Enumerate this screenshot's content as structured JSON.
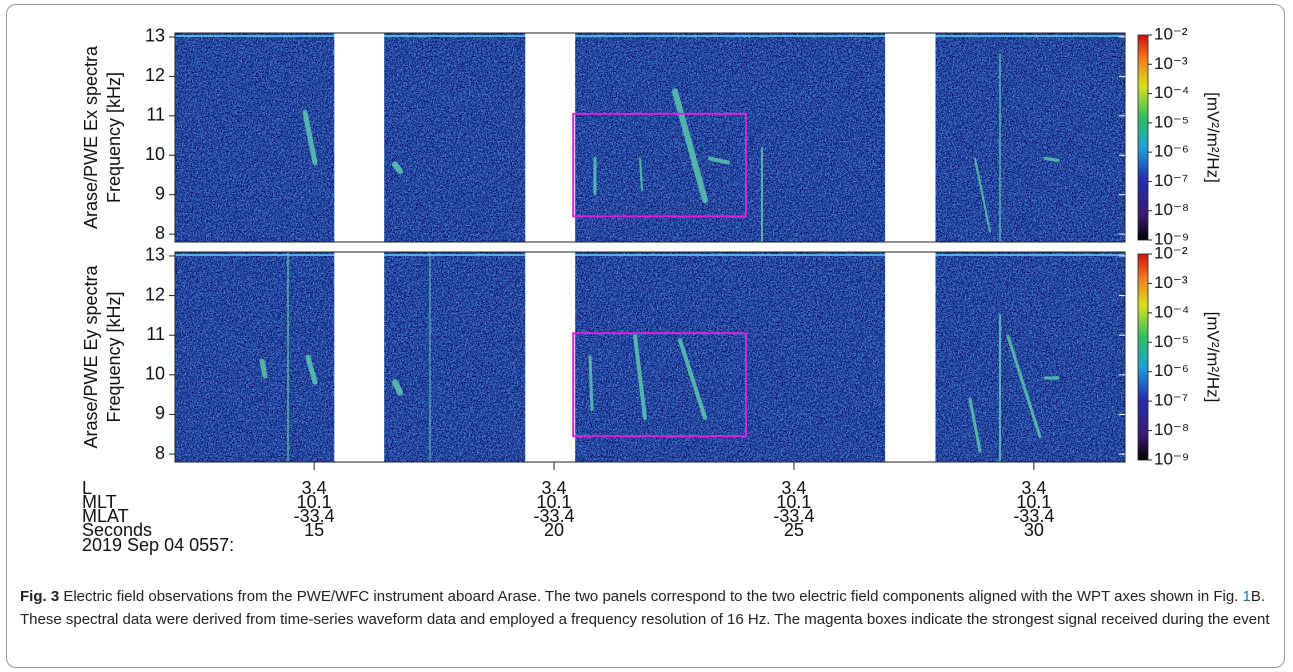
{
  "chart_data": [
    {
      "type": "spectrogram",
      "ylabel": [
        "Arase/PWE Ex spectra",
        "Frequency [kHz]"
      ],
      "ylim": [
        7.8,
        13.1
      ],
      "yticks": [
        8,
        9,
        10,
        11,
        12,
        13
      ],
      "xlim": [
        12.1,
        31.9
      ],
      "gaps": [
        [
          15.42,
          16.46
        ],
        [
          19.4,
          20.44
        ],
        [
          26.9,
          27.95
        ]
      ],
      "box": {
        "x": [
          20.4,
          24.0
        ],
        "y": [
          8.45,
          11.05
        ],
        "color": "#e020e0"
      },
      "colorbar": {
        "label": "[mV²/m²/Hz]",
        "clim": [
          1e-09,
          0.01
        ],
        "log": true,
        "ticks": [
          {
            "value": 0.01,
            "label": "10⁻²"
          },
          {
            "value": 0.001,
            "label": "10⁻³"
          },
          {
            "value": 0.0001,
            "label": "10⁻⁴"
          },
          {
            "value": 1e-05,
            "label": "10⁻⁵"
          },
          {
            "value": 1e-06,
            "label": "10⁻⁶"
          },
          {
            "value": 1e-07,
            "label": "10⁻⁷"
          },
          {
            "value": 1e-08,
            "label": "10⁻⁸"
          },
          {
            "value": 1e-09,
            "label": "10⁻⁹"
          }
        ]
      }
    },
    {
      "type": "spectrogram",
      "ylabel": [
        "Arase/PWE Ey spectra",
        "Frequency [kHz]"
      ],
      "ylim": [
        7.8,
        13.1
      ],
      "yticks": [
        8,
        9,
        10,
        11,
        12,
        13
      ],
      "xlim": [
        12.1,
        31.9
      ],
      "gaps": [
        [
          15.42,
          16.46
        ],
        [
          19.4,
          20.44
        ],
        [
          26.9,
          27.95
        ]
      ],
      "box": {
        "x": [
          20.4,
          24.0
        ],
        "y": [
          8.45,
          11.05
        ],
        "color": "#e020e0"
      },
      "colorbar": {
        "label": "[mV²/m²/Hz]",
        "clim": [
          1e-09,
          0.01
        ],
        "log": true,
        "ticks": [
          {
            "value": 0.01,
            "label": "10⁻²"
          },
          {
            "value": 0.001,
            "label": "10⁻³"
          },
          {
            "value": 0.0001,
            "label": "10⁻⁴"
          },
          {
            "value": 1e-05,
            "label": "10⁻⁵"
          },
          {
            "value": 1e-06,
            "label": "10⁻⁶"
          },
          {
            "value": 1e-07,
            "label": "10⁻⁷"
          },
          {
            "value": 1e-08,
            "label": "10⁻⁸"
          },
          {
            "value": 1e-09,
            "label": "10⁻⁹"
          }
        ]
      }
    }
  ],
  "x_axis": {
    "row_names": [
      "L",
      "MLT",
      "MLAT",
      "Seconds"
    ],
    "xticks": [
      15,
      20,
      25,
      30
    ],
    "rows": [
      [
        3.4,
        3.4,
        3.4,
        3.4
      ],
      [
        10.1,
        10.1,
        10.1,
        10.1
      ],
      [
        -33.4,
        -33.4,
        -33.4,
        -33.4
      ],
      [
        15,
        20,
        25,
        30
      ]
    ],
    "date": "2019 Sep 04 0557:"
  },
  "caption": {
    "label": "Fig. 3",
    "text": [
      "  Electric field observations from the PWE/WFC instrument aboard Arase. The two panels correspond to the two electric field components aligned with the WPT axes shown in Fig. ",
      "B. These spectral data were derived from time-series waveform data and employed a frequency resolution of 16 Hz. The magenta boxes indicate the strongest signal received during the event"
    ],
    "link": "1"
  }
}
